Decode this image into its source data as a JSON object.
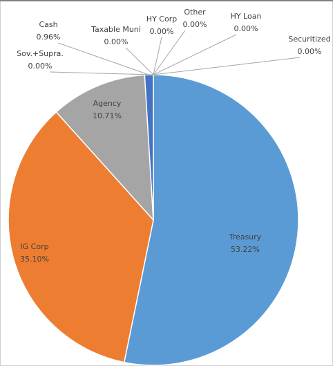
{
  "chart_data": {
    "type": "pie",
    "categories": [
      "Treasury",
      "IG Corp",
      "Agency",
      "Cash",
      "Sov.+Supra.",
      "Taxable Muni",
      "HY Corp",
      "Other",
      "HY Loan",
      "Securitized"
    ],
    "values": [
      53.22,
      35.1,
      10.71,
      0.96,
      0.0,
      0.0,
      0.0,
      0.0,
      0.0,
      0.0
    ],
    "value_labels": [
      "53.22%",
      "35.10%",
      "10.71%",
      "0.96%",
      "0.00%",
      "0.00%",
      "0.00%",
      "0.00%",
      "0.00%",
      "0.00%"
    ],
    "colors": [
      "#5b9bd5",
      "#ed7d31",
      "#a5a5a5",
      "#4472c4"
    ]
  }
}
